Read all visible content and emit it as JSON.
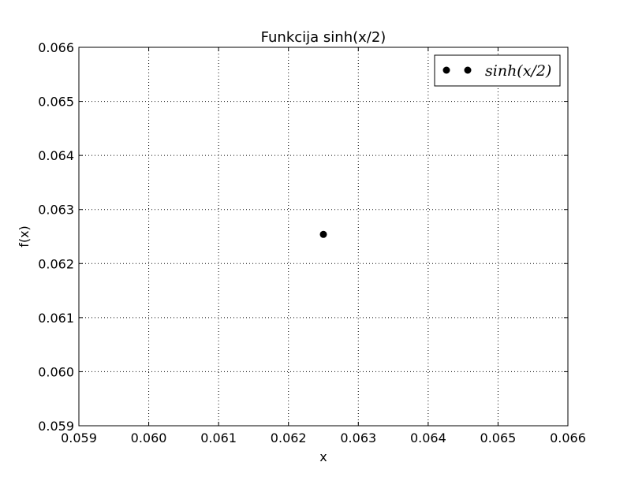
{
  "chart_data": {
    "type": "scatter",
    "title": "Funkcija sinh(x/2)",
    "xlabel": "x",
    "ylabel": "f(x)",
    "xlim": [
      0.059,
      0.066
    ],
    "ylim": [
      0.059,
      0.066
    ],
    "xticks": [
      "0.059",
      "0.060",
      "0.061",
      "0.062",
      "0.063",
      "0.064",
      "0.065",
      "0.066"
    ],
    "yticks": [
      "0.059",
      "0.060",
      "0.061",
      "0.062",
      "0.063",
      "0.064",
      "0.065",
      "0.066"
    ],
    "grid": true,
    "legend_position": "top-right",
    "series": [
      {
        "name": "sinh(x/2)",
        "color": "#000000",
        "marker": "circle",
        "points": [
          {
            "x": 0.0625,
            "y": 0.06254
          }
        ]
      }
    ]
  }
}
